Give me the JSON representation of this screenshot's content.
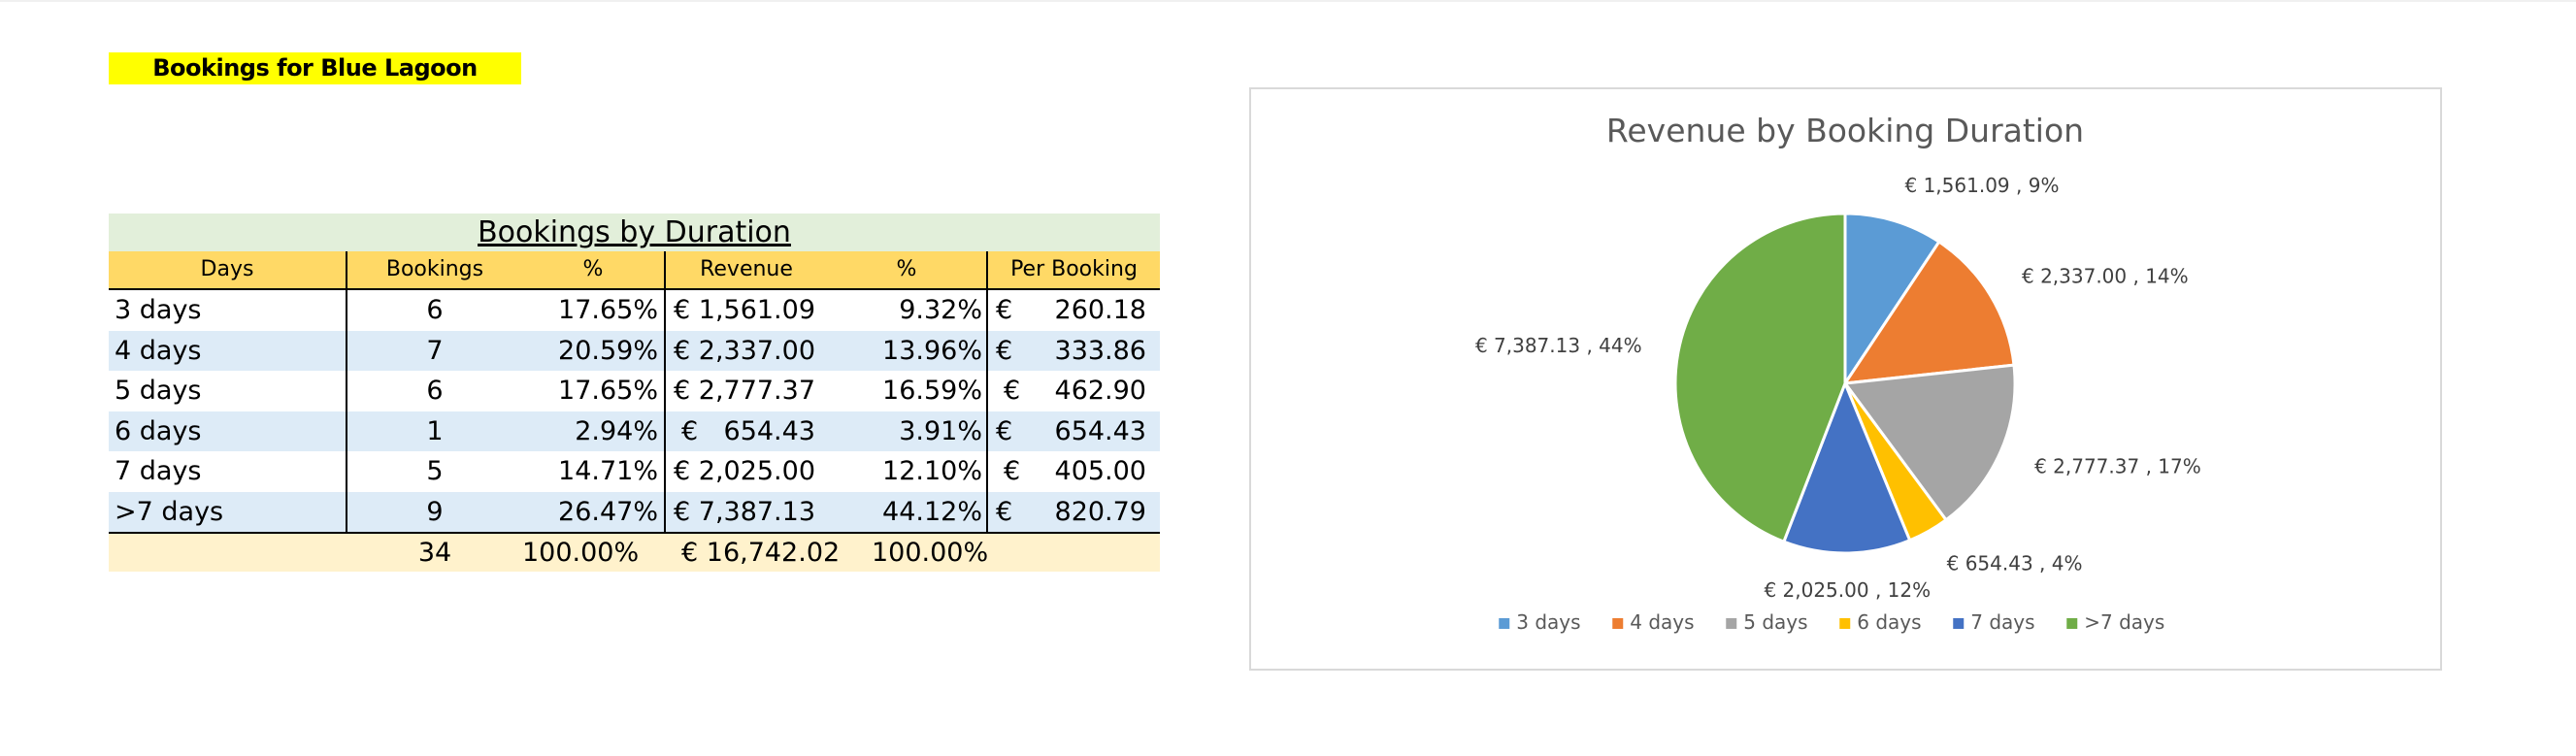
{
  "sheet": {
    "title": "Bookings for Blue Lagoon"
  },
  "table": {
    "title": "Bookings by Duration",
    "headers": [
      "Days",
      "Bookings",
      "%",
      "Revenue",
      "%",
      "Per Booking"
    ],
    "currency": "€",
    "rows": [
      {
        "days": "3 days",
        "bookings": "6",
        "pct_bookings": "17.65%",
        "revenue": "1,561.09",
        "pct_revenue": "9.32%",
        "per_booking": "260.18"
      },
      {
        "days": "4 days",
        "bookings": "7",
        "pct_bookings": "20.59%",
        "revenue": "2,337.00",
        "pct_revenue": "13.96%",
        "per_booking": "333.86"
      },
      {
        "days": "5 days",
        "bookings": "6",
        "pct_bookings": "17.65%",
        "revenue": "2,777.37",
        "pct_revenue": "16.59%",
        "per_booking": "462.90"
      },
      {
        "days": "6 days",
        "bookings": "1",
        "pct_bookings": "2.94%",
        "revenue": "654.43",
        "pct_revenue": "3.91%",
        "per_booking": "654.43"
      },
      {
        "days": "7 days",
        "bookings": "5",
        "pct_bookings": "14.71%",
        "revenue": "2,025.00",
        "pct_revenue": "12.10%",
        "per_booking": "405.00"
      },
      {
        "days": ">7 days",
        "bookings": "9",
        "pct_bookings": "26.47%",
        "revenue": "7,387.13",
        "pct_revenue": "44.12%",
        "per_booking": "820.79"
      }
    ],
    "totals": {
      "bookings": "34",
      "pct_bookings": "100.00%",
      "revenue": "€ 16,742.02",
      "pct_revenue": "100.00%"
    }
  },
  "chart_data": {
    "type": "pie",
    "title": "Revenue by Booking Duration",
    "categories": [
      "3 days",
      "4 days",
      "5 days",
      "6 days",
      "7 days",
      ">7 days"
    ],
    "values": [
      1561.09,
      2337.0,
      2777.37,
      654.43,
      2025.0,
      7387.13
    ],
    "data_labels": [
      "€ 1,561.09 , 9%",
      "€ 2,337.00 , 14%",
      "€ 2,777.37 , 17%",
      "€ 654.43 , 4%",
      "€ 2,025.00 , 12%",
      "€ 7,387.13 , 44%"
    ],
    "colors": [
      "#5b9bd5",
      "#ed7d31",
      "#a5a5a5",
      "#ffc000",
      "#4472c4",
      "#70ad47"
    ],
    "legend_position": "bottom"
  }
}
